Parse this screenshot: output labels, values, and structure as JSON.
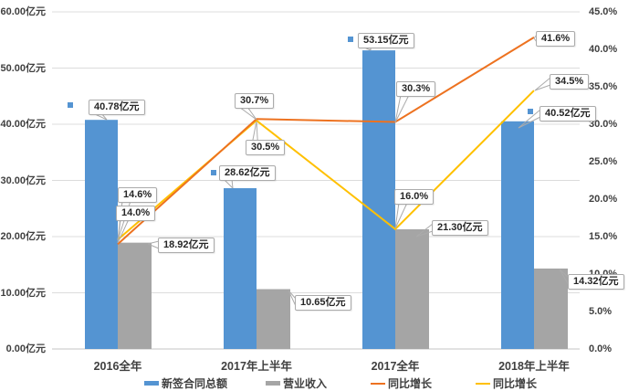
{
  "chart_data": {
    "type": "bar",
    "subtype": "combo-bar-line-dual-axis",
    "title": "",
    "categories": [
      "2016全年",
      "2017年上半年",
      "2017全年",
      "2018年上半年"
    ],
    "series": [
      {
        "name": "新签合同总额",
        "kind": "bar",
        "axis": "left",
        "color": "#5494d2",
        "unit": "亿元",
        "values": [
          40.78,
          28.62,
          53.15,
          40.52
        ],
        "labels": [
          "40.78亿元",
          "28.62亿元",
          "53.15亿元",
          "40.52亿元"
        ]
      },
      {
        "name": "营业收入",
        "kind": "bar",
        "axis": "left",
        "color": "#a5a5a5",
        "unit": "亿元",
        "values": [
          18.92,
          10.65,
          21.3,
          14.32
        ],
        "labels": [
          "18.92亿元",
          "10.65亿元",
          "21.30亿元",
          "14.32亿元"
        ]
      },
      {
        "name": "同比增长",
        "kind": "line",
        "axis": "right",
        "color": "#ed7220",
        "unit": "%",
        "values": [
          14.0,
          30.7,
          30.3,
          41.6
        ],
        "labels": [
          "14.0%",
          "30.7%",
          "30.3%",
          "41.6%"
        ]
      },
      {
        "name": "同比增长",
        "kind": "line",
        "axis": "right",
        "color": "#ffc000",
        "unit": "%",
        "values": [
          14.6,
          30.5,
          16.0,
          34.5
        ],
        "labels": [
          "14.6%",
          "30.5%",
          "16.0%",
          "34.5%"
        ]
      }
    ],
    "left_axis": {
      "min": 0,
      "max": 60,
      "step": 10,
      "tick_labels": [
        "60.00亿元",
        "50.00亿元",
        "40.00亿元",
        "30.00亿元",
        "20.00亿元",
        "10.00亿元",
        "0.00亿元"
      ]
    },
    "right_axis": {
      "min": 0,
      "max": 45,
      "step": 5,
      "tick_labels": [
        "45.0%",
        "40.0%",
        "35.0%",
        "30.0%",
        "25.0%",
        "20.0%",
        "15.0%",
        "10.0%",
        "5.0%",
        "0.0%"
      ]
    },
    "grid": true,
    "legend_position": "bottom",
    "legend": [
      {
        "label": "新签合同总额",
        "marker": "bar",
        "color": "#5494d2"
      },
      {
        "label": "营业收入",
        "marker": "bar",
        "color": "#a5a5a5"
      },
      {
        "label": "同比增长",
        "marker": "line",
        "color": "#ed7220"
      },
      {
        "label": "同比增长",
        "marker": "line",
        "color": "#ffc000"
      }
    ],
    "colors": {
      "gridline": "#dcdcdc",
      "axis_line": "#c4c4c4",
      "tick_text": "#404040",
      "callout_border": "#ababab"
    }
  }
}
